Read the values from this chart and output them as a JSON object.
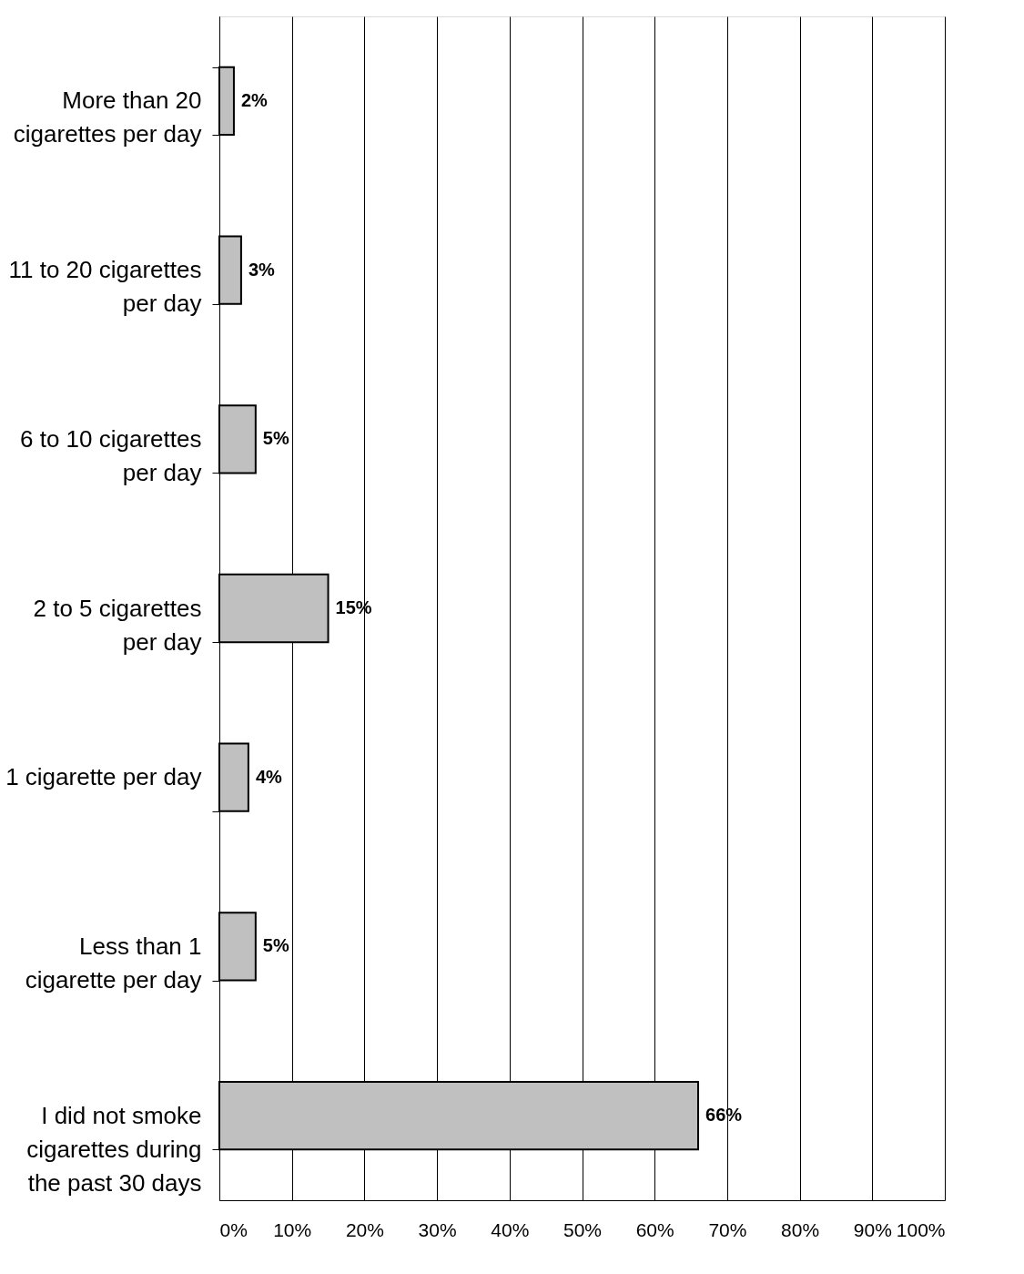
{
  "chart_data": {
    "type": "bar",
    "orientation": "horizontal",
    "categories": [
      "More than 20 cigarettes per day",
      "11 to 20 cigarettes per day",
      "6 to 10 cigarettes per day",
      "2 to 5 cigarettes per day",
      "1 cigarette per day",
      "Less than 1 cigarette per day",
      "I did not smoke cigarettes during the past 30 days"
    ],
    "values": [
      2,
      3,
      5,
      15,
      4,
      5,
      66
    ],
    "value_labels": [
      "2%",
      "3%",
      "5%",
      "15%",
      "4%",
      "5%",
      "66%"
    ],
    "color": "#c0c0c0",
    "xlim": [
      0,
      100
    ],
    "xticks": [
      {
        "value": 0,
        "label": "0%"
      },
      {
        "value": 10,
        "label": "10%"
      },
      {
        "value": 20,
        "label": "20%"
      },
      {
        "value": 30,
        "label": "30%"
      },
      {
        "value": 40,
        "label": "40%"
      },
      {
        "value": 50,
        "label": "50%"
      },
      {
        "value": 60,
        "label": "60%"
      },
      {
        "value": 70,
        "label": "70%"
      },
      {
        "value": 80,
        "label": "80%"
      },
      {
        "value": 90,
        "label": "90%"
      },
      {
        "value": 100,
        "label": "100%"
      }
    ],
    "grid": "x"
  }
}
